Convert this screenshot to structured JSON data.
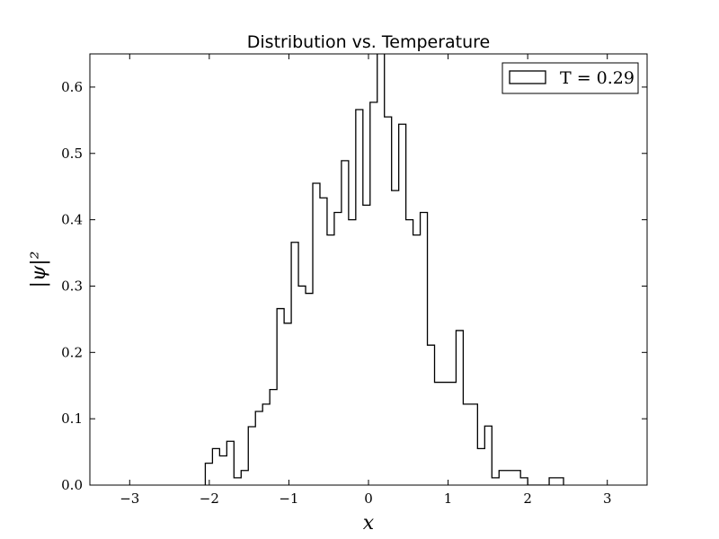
{
  "chart_data": {
    "type": "histogram",
    "title": "Distribution vs. Temperature",
    "xlabel": "x",
    "ylabel": "|ψ|²",
    "xlim": [
      -3.5,
      3.5
    ],
    "ylim": [
      0,
      0.65
    ],
    "xticks": [
      -3,
      -2,
      -1,
      0,
      1,
      2,
      3
    ],
    "xtick_labels": [
      "−3",
      "−2",
      "−1",
      "0",
      "1",
      "2",
      "3"
    ],
    "yticks": [
      0.0,
      0.1,
      0.2,
      0.3,
      0.4,
      0.5,
      0.6
    ],
    "ytick_labels": [
      "0.0",
      "0.1",
      "0.2",
      "0.3",
      "0.4",
      "0.5",
      "0.6"
    ],
    "histtype": "step",
    "legend": {
      "position": "upper right",
      "label": "T = 0.29"
    },
    "bin_edges": [
      -2.05,
      -1.96,
      -1.87,
      -1.78,
      -1.69,
      -1.6,
      -1.51,
      -1.42,
      -1.33,
      -1.24,
      -1.15,
      -1.06,
      -0.97,
      -0.88,
      -0.79,
      -0.7,
      -0.61,
      -0.52,
      -0.43,
      -0.34,
      -0.25,
      -0.16,
      -0.07,
      0.02,
      0.11,
      0.2,
      0.29,
      0.38,
      0.47,
      0.56,
      0.65,
      0.74,
      0.83,
      0.92,
      1.01,
      1.1,
      1.19,
      1.28,
      1.37,
      1.46,
      1.55,
      1.64,
      1.73,
      1.82,
      1.91,
      2.0,
      2.09,
      2.18,
      2.27,
      2.36,
      2.45
    ],
    "values": [
      0.033,
      0.055,
      0.044,
      0.066,
      0.011,
      0.022,
      0.088,
      0.111,
      0.122,
      0.144,
      0.266,
      0.244,
      0.366,
      0.3,
      0.289,
      0.455,
      0.433,
      0.377,
      0.411,
      0.489,
      0.4,
      0.566,
      0.422,
      0.577,
      0.655,
      0.555,
      0.444,
      0.544,
      0.4,
      0.377,
      0.411,
      0.211,
      0.155,
      0.155,
      0.155,
      0.233,
      0.122,
      0.122,
      0.055,
      0.089,
      0.011,
      0.022,
      0.022,
      0.022,
      0.011,
      0.0,
      0.0,
      0.0,
      0.011,
      0.011
    ]
  }
}
